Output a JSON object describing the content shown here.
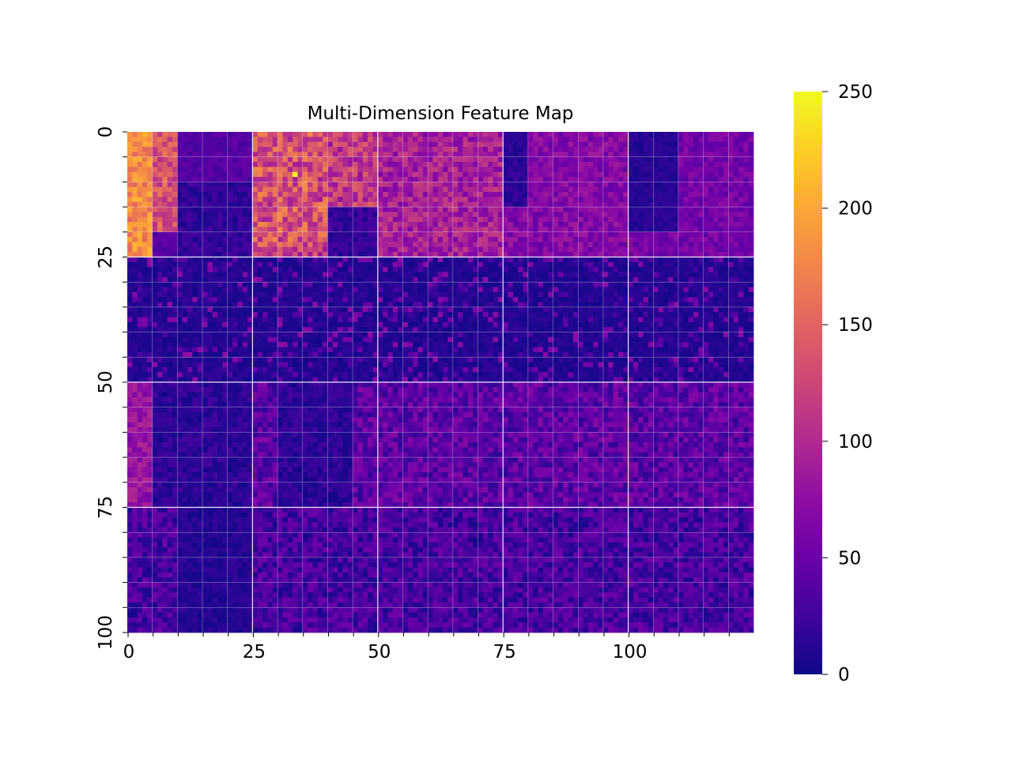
{
  "chart_data": {
    "type": "heatmap",
    "title": "Multi-Dimension Feature Map",
    "xlabel": "",
    "ylabel": "",
    "colormap": "plasma",
    "value_range": [
      0,
      250
    ],
    "n_rows": 100,
    "n_cols": 125,
    "x_ticks": [
      "0",
      "25",
      "50",
      "75",
      "100"
    ],
    "x_tick_values": [
      0,
      25,
      50,
      75,
      100
    ],
    "y_ticks": [
      "0",
      "25",
      "50",
      "75",
      "100"
    ],
    "y_tick_values": [
      0,
      25,
      50,
      75,
      100
    ],
    "colorbar_ticks": [
      "0",
      "50",
      "100",
      "150",
      "200",
      "250"
    ],
    "colorbar_tick_values": [
      0,
      50,
      100,
      150,
      200,
      250
    ],
    "grid": true,
    "grid_color": "#ffffff",
    "peak_cell": {
      "row": 8,
      "col": 33,
      "value": 250
    },
    "column_block_size": 25,
    "row_block_size": 25,
    "block_mean_values": [
      {
        "rows": [
          0,
          25
        ],
        "cols": [
          0,
          5
        ],
        "value": 175
      },
      {
        "rows": [
          0,
          25
        ],
        "cols": [
          5,
          25
        ],
        "value": 40
      },
      {
        "rows": [
          0,
          25
        ],
        "cols": [
          25,
          50
        ],
        "value": 120
      },
      {
        "rows": [
          0,
          25
        ],
        "cols": [
          50,
          75
        ],
        "value": 95
      },
      {
        "rows": [
          0,
          25
        ],
        "cols": [
          75,
          100
        ],
        "value": 70
      },
      {
        "rows": [
          0,
          25
        ],
        "cols": [
          100,
          125
        ],
        "value": 60
      },
      {
        "rows": [
          25,
          50
        ],
        "cols": [
          0,
          125
        ],
        "value": 15
      },
      {
        "rows": [
          50,
          75
        ],
        "cols": [
          0,
          125
        ],
        "value": 35
      },
      {
        "rows": [
          75,
          100
        ],
        "cols": [
          0,
          125
        ],
        "value": 25
      }
    ]
  }
}
